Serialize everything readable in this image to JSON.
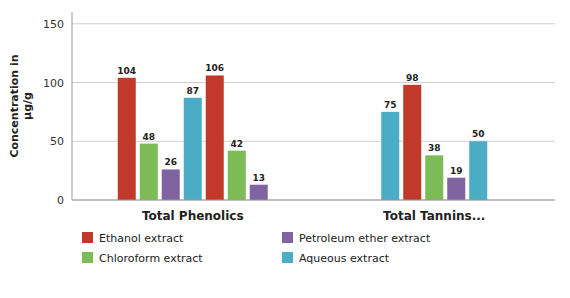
{
  "chart_data": {
    "type": "bar",
    "categories": [
      "Total Phenolics",
      "Total Tannins..."
    ],
    "groups": [
      {
        "values": [
          104,
          48,
          26,
          87,
          106,
          42,
          13
        ],
        "colors": [
          "#c0392b",
          "#7dbb57",
          "#8064a2",
          "#4bacc6",
          "#c0392b",
          "#7dbb57",
          "#8064a2"
        ]
      },
      {
        "values": [
          75,
          98,
          38,
          19,
          50
        ],
        "colors": [
          "#4bacc6",
          "#c0392b",
          "#7dbb57",
          "#8064a2",
          "#4bacc6"
        ]
      }
    ],
    "series": [
      {
        "name": "Ethanol extract",
        "color": "#c0392b"
      },
      {
        "name": "Chloroform extract",
        "color": "#7dbb57"
      },
      {
        "name": "Petroleum ether extract",
        "color": "#8064a2"
      },
      {
        "name": "Aqueous extract",
        "color": "#4bacc6"
      }
    ],
    "ylabel": "Concentration in\nμg/g",
    "ylim": [
      0,
      160
    ],
    "yticks": [
      0,
      50,
      100,
      150
    ],
    "grid": true,
    "data_labels": true,
    "legend": "bottom"
  }
}
